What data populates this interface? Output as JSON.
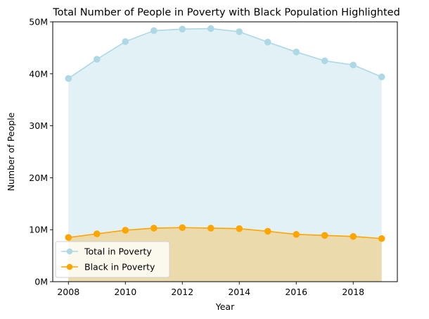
{
  "chart_data": {
    "type": "area",
    "title": "Total Number of People in Poverty with Black Population Highlighted",
    "xlabel": "Year",
    "ylabel": "Number of People",
    "x": [
      2008,
      2009,
      2010,
      2011,
      2012,
      2013,
      2014,
      2015,
      2016,
      2017,
      2018,
      2019
    ],
    "xlim": [
      2007.45,
      2019.55
    ],
    "ylim": [
      0,
      50000000
    ],
    "xticks": [
      2008,
      2010,
      2012,
      2014,
      2016,
      2018
    ],
    "xtick_labels": [
      "2008",
      "2010",
      "2012",
      "2014",
      "2016",
      "2018"
    ],
    "yticks": [
      0,
      10000000,
      20000000,
      30000000,
      40000000,
      50000000
    ],
    "ytick_labels": [
      "0M",
      "10M",
      "20M",
      "30M",
      "40M",
      "50M"
    ],
    "grid": false,
    "legend_position": "lower-left",
    "series": [
      {
        "name": "Total in Poverty",
        "color": "#add8e6",
        "fill_color": "#add8e6",
        "values": [
          39100000,
          42800000,
          46200000,
          48300000,
          48600000,
          48700000,
          48100000,
          46100000,
          44200000,
          42500000,
          41700000,
          39400000
        ]
      },
      {
        "name": "Black in Poverty",
        "color": "#ffa500",
        "fill_color": "#ffa500",
        "values": [
          8500000,
          9200000,
          9900000,
          10300000,
          10400000,
          10300000,
          10200000,
          9700000,
          9100000,
          8900000,
          8700000,
          8300000
        ]
      }
    ]
  }
}
